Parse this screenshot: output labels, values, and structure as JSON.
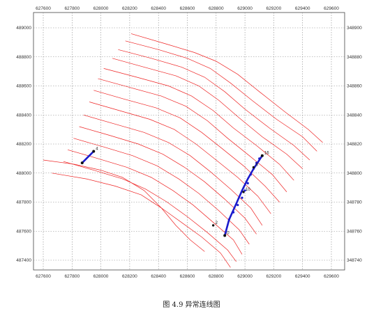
{
  "caption": "图 4.9 异常连线图",
  "chart_data": {
    "type": "line",
    "x_ticks_bottom": [
      "627600",
      "627800",
      "628000",
      "628200",
      "628400",
      "628600",
      "628800",
      "629000",
      "629200",
      "629400",
      "629600"
    ],
    "x_ticks_top": [
      "627600",
      "627800",
      "628000",
      "628200",
      "628400",
      "628600",
      "628800",
      "629000",
      "629200",
      "629400",
      "629600"
    ],
    "y_ticks_left": [
      "489000",
      "488800",
      "488600",
      "488400",
      "488200",
      "488000",
      "487800",
      "487600",
      "487400"
    ],
    "y_ticks_right": [
      "348900",
      "348880",
      "348860",
      "348840",
      "348820",
      "348800",
      "348780",
      "348760",
      "348740"
    ],
    "xlim": [
      627600,
      629600
    ],
    "ylim": [
      487400,
      489000
    ],
    "grid": true,
    "colors": {
      "contour": "#ee2222",
      "anomaly": "#1a1acc",
      "point": "#111111",
      "grid": "#888888"
    },
    "contours": [
      [
        [
          628210,
          488960
        ],
        [
          628450,
          488890
        ],
        [
          628650,
          488830
        ],
        [
          628800,
          488770
        ],
        [
          628950,
          488680
        ],
        [
          629100,
          488560
        ],
        [
          629280,
          488420
        ],
        [
          629440,
          488300
        ],
        [
          629540,
          488210
        ]
      ],
      [
        [
          628170,
          488910
        ],
        [
          628400,
          488850
        ],
        [
          628600,
          488790
        ],
        [
          628760,
          488720
        ],
        [
          628900,
          488620
        ],
        [
          629050,
          488500
        ],
        [
          629220,
          488370
        ],
        [
          629400,
          488250
        ],
        [
          629500,
          488150
        ]
      ],
      [
        [
          628120,
          488850
        ],
        [
          628350,
          488790
        ],
        [
          628560,
          488730
        ],
        [
          628720,
          488660
        ],
        [
          628860,
          488560
        ],
        [
          629000,
          488440
        ],
        [
          629170,
          488310
        ],
        [
          629340,
          488190
        ],
        [
          629450,
          488090
        ]
      ],
      [
        [
          628080,
          488790
        ],
        [
          628300,
          488730
        ],
        [
          628520,
          488670
        ],
        [
          628680,
          488600
        ],
        [
          628820,
          488500
        ],
        [
          628960,
          488380
        ],
        [
          629120,
          488250
        ],
        [
          629290,
          488130
        ],
        [
          629400,
          488030
        ]
      ],
      [
        [
          628020,
          488720
        ],
        [
          628250,
          488660
        ],
        [
          628470,
          488600
        ],
        [
          628630,
          488530
        ],
        [
          628780,
          488430
        ],
        [
          628920,
          488310
        ],
        [
          629080,
          488190
        ],
        [
          629240,
          488060
        ],
        [
          629340,
          487950
        ]
      ],
      [
        [
          627980,
          488650
        ],
        [
          628200,
          488590
        ],
        [
          628420,
          488530
        ],
        [
          628590,
          488460
        ],
        [
          628740,
          488360
        ],
        [
          628880,
          488240
        ],
        [
          629030,
          488120
        ],
        [
          629190,
          487990
        ],
        [
          629290,
          487870
        ]
      ],
      [
        [
          627950,
          488570
        ],
        [
          628160,
          488510
        ],
        [
          628380,
          488450
        ],
        [
          628550,
          488380
        ],
        [
          628700,
          488280
        ],
        [
          628840,
          488170
        ],
        [
          628990,
          488050
        ],
        [
          629140,
          487910
        ],
        [
          629240,
          487800
        ]
      ],
      [
        [
          627920,
          488490
        ],
        [
          628130,
          488430
        ],
        [
          628340,
          488370
        ],
        [
          628510,
          488300
        ],
        [
          628660,
          488200
        ],
        [
          628800,
          488090
        ],
        [
          628950,
          487970
        ],
        [
          629090,
          487840
        ],
        [
          629180,
          487720
        ]
      ],
      [
        [
          627880,
          488400
        ],
        [
          628090,
          488340
        ],
        [
          628300,
          488280
        ],
        [
          628470,
          488210
        ],
        [
          628620,
          488120
        ],
        [
          628760,
          488010
        ],
        [
          628900,
          487890
        ],
        [
          629040,
          487760
        ],
        [
          629120,
          487640
        ]
      ],
      [
        [
          627850,
          488320
        ],
        [
          628060,
          488260
        ],
        [
          628260,
          488200
        ],
        [
          628430,
          488130
        ],
        [
          628580,
          488040
        ],
        [
          628720,
          487940
        ],
        [
          628860,
          487820
        ],
        [
          629000,
          487690
        ],
        [
          629080,
          487580
        ]
      ],
      [
        [
          627810,
          488240
        ],
        [
          628020,
          488180
        ],
        [
          628220,
          488120
        ],
        [
          628390,
          488050
        ],
        [
          628540,
          487960
        ],
        [
          628680,
          487860
        ],
        [
          628820,
          487740
        ],
        [
          628960,
          487610
        ],
        [
          629030,
          487510
        ]
      ],
      [
        [
          627770,
          488160
        ],
        [
          627980,
          488100
        ],
        [
          628180,
          488040
        ],
        [
          628350,
          487970
        ],
        [
          628500,
          487880
        ],
        [
          628640,
          487780
        ],
        [
          628780,
          487660
        ],
        [
          628920,
          487540
        ],
        [
          628980,
          487440
        ]
      ],
      [
        [
          627740,
          488080
        ],
        [
          627950,
          488020
        ],
        [
          628150,
          487960
        ],
        [
          628310,
          487890
        ],
        [
          628460,
          487800
        ],
        [
          628600,
          487700
        ],
        [
          628740,
          487590
        ],
        [
          628880,
          487470
        ],
        [
          628940,
          487390
        ]
      ],
      [
        [
          627660,
          488000
        ],
        [
          627900,
          487960
        ],
        [
          628100,
          487910
        ],
        [
          628280,
          487850
        ],
        [
          628420,
          487760
        ],
        [
          628560,
          487660
        ],
        [
          628700,
          487560
        ],
        [
          628830,
          487450
        ],
        [
          628900,
          487350
        ]
      ],
      [
        [
          627600,
          488090
        ],
        [
          627820,
          488060
        ],
        [
          628000,
          488020
        ],
        [
          628150,
          487970
        ],
        [
          628300,
          487880
        ],
        [
          628420,
          487760
        ],
        [
          628520,
          487640
        ],
        [
          628620,
          487540
        ],
        [
          628720,
          487460
        ]
      ]
    ],
    "anomaly_lines": [
      {
        "name": "4",
        "points": [
          [
            627870,
            488070
          ],
          [
            627950,
            488150
          ]
        ]
      },
      {
        "name": "16",
        "points": [
          [
            628860,
            487570
          ],
          [
            628890,
            487680
          ],
          [
            628940,
            487790
          ],
          [
            628980,
            487880
          ],
          [
            629020,
            487960
          ],
          [
            629060,
            488030
          ],
          [
            629120,
            488120
          ]
        ]
      }
    ],
    "anomaly_markers": [
      [
        628890,
        487680
      ],
      [
        628920,
        487730
      ],
      [
        628950,
        487780
      ],
      [
        628980,
        487830
      ],
      [
        629000,
        487880
      ],
      [
        629020,
        487930
      ],
      [
        629040,
        487990
      ],
      [
        629060,
        488030
      ],
      [
        629080,
        488070
      ],
      [
        629100,
        488100
      ]
    ],
    "labeled_points": [
      {
        "label": "4",
        "x": 627950,
        "y": 488150
      },
      {
        "label": "16",
        "x": 629120,
        "y": 488120
      },
      {
        "label": "2",
        "x": 628780,
        "y": 487640
      },
      {
        "label": "8",
        "x": 629060,
        "y": 488040
      },
      {
        "label": "10",
        "x": 628990,
        "y": 487870
      },
      {
        "label": "0",
        "x": 628860,
        "y": 487570
      }
    ]
  }
}
